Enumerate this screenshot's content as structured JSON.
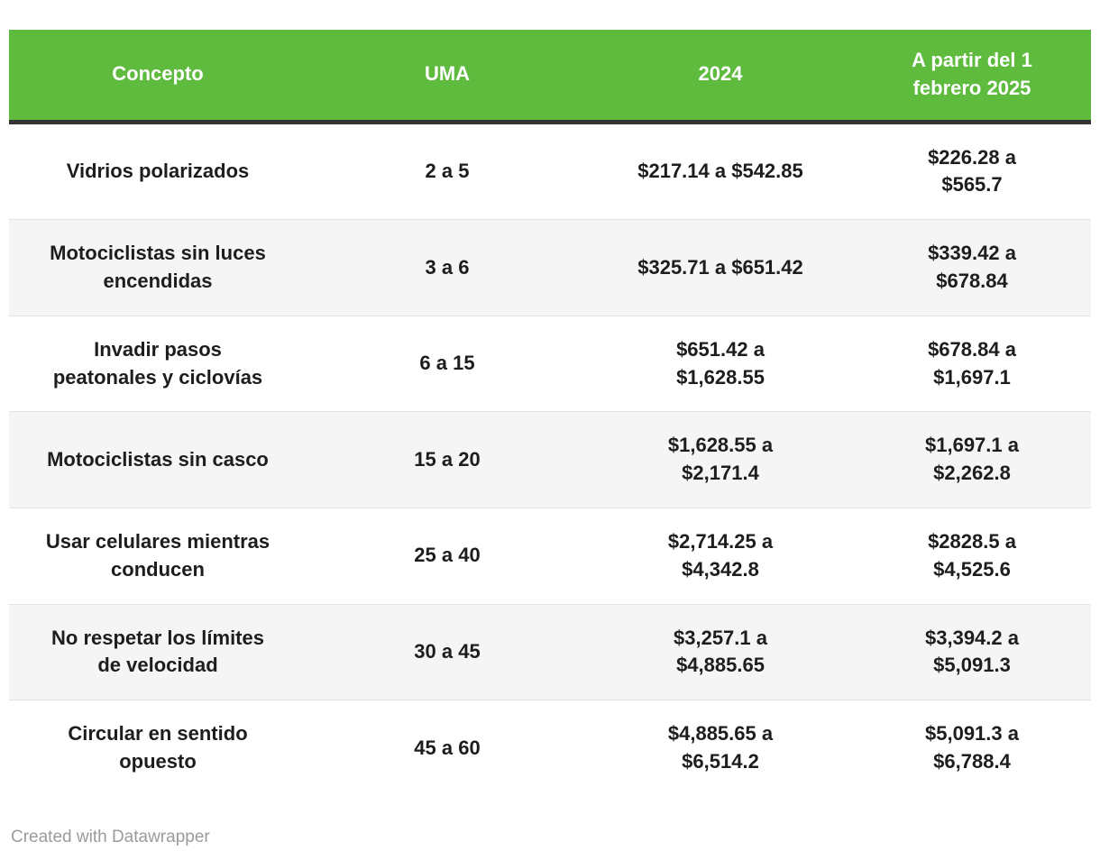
{
  "colors": {
    "header_bg": "#5EBB3E",
    "header_text": "#FFFFFF",
    "body_text": "#1D1D1D",
    "alt_row_bg": "#F5F5F5",
    "header_divider": "#333333",
    "row_divider": "#E3E3E3",
    "credit_text": "#9B9B9B"
  },
  "table": {
    "header": [
      "Concepto",
      "UMA",
      "2024",
      "A partir del 1\nfebrero 2025"
    ],
    "rows": [
      [
        "Vidrios polarizados",
        "2 a 5",
        "$217.14 a $542.85",
        "$226.28 a\n$565.7"
      ],
      [
        "Motociclistas sin luces\nencendidas",
        "3 a 6",
        "$325.71 a $651.42",
        "$339.42 a\n$678.84"
      ],
      [
        "Invadir pasos\npeatonales y ciclovías",
        "6 a 15",
        "$651.42 a\n$1,628.55",
        "$678.84 a\n$1,697.1"
      ],
      [
        "Motociclistas sin casco",
        "15 a 20",
        "$1,628.55 a\n$2,171.4",
        "$1,697.1 a\n$2,262.8"
      ],
      [
        "Usar celulares mientras\nconducen",
        "25 a 40",
        "$2,714.25 a\n$4,342.8",
        "$2828.5 a\n$4,525.6"
      ],
      [
        "No respetar los límites\nde velocidad",
        "30 a 45",
        "$3,257.1 a\n$4,885.65",
        "$3,394.2 a\n$5,091.3"
      ],
      [
        "Circular en sentido\nopuesto",
        "45 a 60",
        "$4,885.65 a\n$6,514.2",
        "$5,091.3 a\n$6,788.4"
      ]
    ]
  },
  "footer": {
    "credit": "Created with Datawrapper"
  },
  "chart_data": {
    "type": "table",
    "columns": [
      "Concepto",
      "UMA",
      "2024",
      "A partir del 1 febrero 2025"
    ],
    "rows": [
      [
        "Vidrios polarizados",
        "2 a 5",
        "$217.14 a $542.85",
        "$226.28 a $565.7"
      ],
      [
        "Motociclistas sin luces encendidas",
        "3 a 6",
        "$325.71 a $651.42",
        "$339.42 a $678.84"
      ],
      [
        "Invadir pasos peatonales y ciclovías",
        "6 a 15",
        "$651.42 a $1,628.55",
        "$678.84 a $1,697.1"
      ],
      [
        "Motociclistas sin casco",
        "15 a 20",
        "$1,628.55 a $2,171.4",
        "$1,697.1 a $2,262.8"
      ],
      [
        "Usar celulares mientras conducen",
        "25 a 40",
        "$2,714.25 a $4,342.8",
        "$2828.5 a $4,525.6"
      ],
      [
        "No respetar los límites de velocidad",
        "30 a 45",
        "$3,257.1 a $4,885.65",
        "$3,394.2 a $5,091.3"
      ],
      [
        "Circular en sentido opuesto",
        "45 a 60",
        "$4,885.65 a $6,514.2",
        "$5,091.3 a $6,788.4"
      ]
    ],
    "title": "",
    "layout": {
      "header_position": "top",
      "row_striping": true,
      "alignment": "center"
    }
  }
}
